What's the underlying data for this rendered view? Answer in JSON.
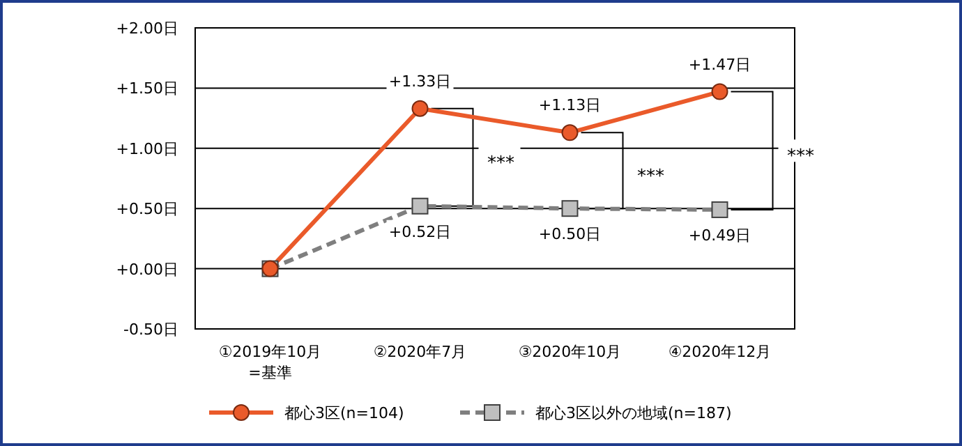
{
  "chart_data": {
    "type": "line",
    "categories": [
      "①2019年10月\n=基準",
      "②2020年7月",
      "③2020年10月",
      "④2020年12月"
    ],
    "series": [
      {
        "name": "都心3区(n=104)",
        "color": "#ea5a2a",
        "marker": "circle",
        "line_style": "solid",
        "values": [
          0,
          1.33,
          1.13,
          1.47
        ],
        "value_labels": [
          null,
          "+1.33日",
          "+1.13日",
          "+1.47日"
        ]
      },
      {
        "name": "都心3区以外の地域(n=187)",
        "color": "#7f7f7f",
        "marker": "square",
        "line_style": "dashed",
        "values": [
          0,
          0.52,
          0.5,
          0.49
        ],
        "value_labels": [
          null,
          "+0.52日",
          "+0.50日",
          "+0.49日"
        ]
      }
    ],
    "ylim": [
      -0.5,
      2
    ],
    "yticks": [
      {
        "value": -0.5,
        "label": "-0.50日"
      },
      {
        "value": 0,
        "label": "+0.00日"
      },
      {
        "value": 0.5,
        "label": "+0.50日"
      },
      {
        "value": 1,
        "label": "+1.00日"
      },
      {
        "value": 1.5,
        "label": "+1.50日"
      },
      {
        "value": 2,
        "label": "+2.00日"
      }
    ],
    "grid": "y",
    "legend": "bottom",
    "annotations": [
      "***",
      "***",
      "***"
    ]
  }
}
